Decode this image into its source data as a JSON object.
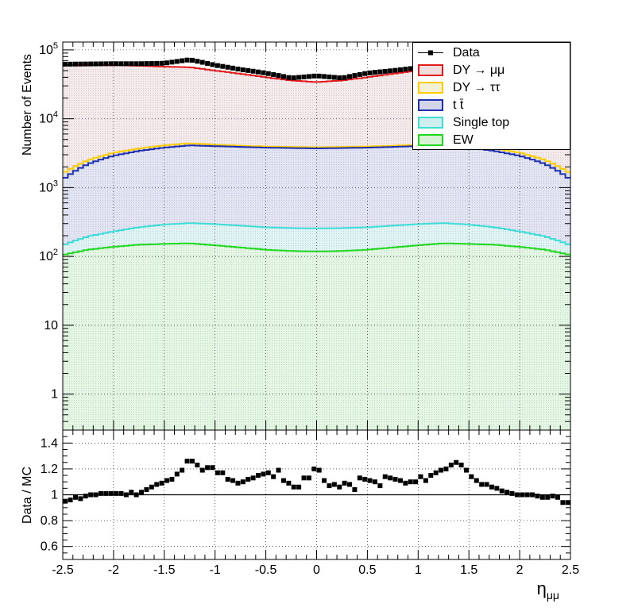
{
  "chart_data": [
    {
      "type": "area",
      "panel": "main",
      "ylabel": "Number of Events",
      "yscale": "log",
      "ylim": [
        0.3,
        130000
      ],
      "xlim": [
        -2.5,
        2.5
      ],
      "bins": 100,
      "yticks": [
        "1",
        "10",
        "10^2",
        "10^3",
        "10^4",
        "10^5"
      ],
      "grid": true,
      "legend_position": "top-right",
      "legend": [
        {
          "label": "Data",
          "symbol": "marker-line",
          "color": "#000000"
        },
        {
          "label": "DY → μμ",
          "symbol": "box",
          "color": "#e31a1c"
        },
        {
          "label": "DY → ττ",
          "symbol": "box",
          "color": "#ffcc00"
        },
        {
          "label": "t t̄",
          "symbol": "box",
          "color": "#1f2fb0"
        },
        {
          "label": "Single top",
          "symbol": "box",
          "color": "#3fdcd8"
        },
        {
          "label": "EW",
          "symbol": "box",
          "color": "#1fd81f"
        }
      ],
      "series": [
        {
          "name": "EW",
          "color": "#1fd81f",
          "fill": "#d6f2d2",
          "x": [
            -2.5,
            -2.25,
            -2.0,
            -1.75,
            -1.5,
            -1.25,
            -1.0,
            -0.75,
            -0.5,
            -0.25,
            0.0,
            0.25,
            0.5,
            0.75,
            1.0,
            1.25,
            1.5,
            1.75,
            2.0,
            2.25,
            2.5
          ],
          "values": [
            105,
            125,
            138,
            148,
            152,
            155,
            145,
            135,
            125,
            120,
            118,
            120,
            125,
            135,
            145,
            155,
            152,
            148,
            138,
            125,
            105
          ]
        },
        {
          "name": "Single top",
          "color": "#3fdcd8",
          "fill": "#cfeeee",
          "x": [
            -2.5,
            -2.25,
            -2.0,
            -1.75,
            -1.5,
            -1.25,
            -1.0,
            -0.75,
            -0.5,
            -0.25,
            0.0,
            0.25,
            0.5,
            0.75,
            1.0,
            1.25,
            1.5,
            1.75,
            2.0,
            2.25,
            2.5
          ],
          "values": [
            145,
            195,
            230,
            265,
            290,
            305,
            295,
            280,
            265,
            258,
            255,
            258,
            265,
            280,
            295,
            305,
            290,
            265,
            230,
            195,
            145
          ]
        },
        {
          "name": "t t̄",
          "color": "#1f2fb0",
          "fill": "#d3d6ea",
          "x": [
            -2.5,
            -2.25,
            -2.0,
            -1.75,
            -1.5,
            -1.25,
            -1.0,
            -0.75,
            -0.5,
            -0.25,
            0.0,
            0.25,
            0.5,
            0.75,
            1.0,
            1.25,
            1.5,
            1.75,
            2.0,
            2.25,
            2.5
          ],
          "values": [
            1300,
            2200,
            2900,
            3400,
            3800,
            4100,
            4000,
            3900,
            3800,
            3750,
            3700,
            3750,
            3800,
            3900,
            4000,
            4100,
            3800,
            3400,
            2900,
            2200,
            1300
          ]
        },
        {
          "name": "DY → ττ",
          "color": "#ffcc00",
          "fill": "#d3d6ea",
          "x": [
            -2.5,
            -2.25,
            -2.0,
            -1.75,
            -1.5,
            -1.25,
            -1.0,
            -0.75,
            -0.5,
            -0.25,
            0.0,
            0.25,
            0.5,
            0.75,
            1.0,
            1.25,
            1.5,
            1.75,
            2.0,
            2.25,
            2.5
          ],
          "values": [
            1600,
            2500,
            3200,
            3700,
            4100,
            4400,
            4200,
            4050,
            3950,
            3900,
            3850,
            3900,
            3950,
            4050,
            4200,
            4400,
            4100,
            3700,
            3200,
            2500,
            1600
          ]
        },
        {
          "name": "DY → μμ",
          "color": "#e31a1c",
          "fill": "#f0dede",
          "x": [
            -2.5,
            -2.25,
            -2.0,
            -1.75,
            -1.5,
            -1.25,
            -1.0,
            -0.75,
            -0.5,
            -0.25,
            0.0,
            0.25,
            0.5,
            0.75,
            1.0,
            1.25,
            1.5,
            1.75,
            2.0,
            2.25,
            2.5
          ],
          "values": [
            60000,
            60500,
            60000,
            59000,
            57000,
            56000,
            50000,
            45000,
            40000,
            36000,
            34000,
            36000,
            40000,
            45000,
            50000,
            56000,
            57000,
            59000,
            60000,
            60500,
            60000
          ]
        },
        {
          "name": "Data",
          "color": "#000000",
          "marker": "square",
          "x": [
            -2.5,
            -2.25,
            -2.0,
            -1.75,
            -1.5,
            -1.25,
            -1.0,
            -0.75,
            -0.5,
            -0.25,
            0.0,
            0.25,
            0.5,
            0.75,
            1.0,
            1.25,
            1.5,
            1.75,
            2.0,
            2.25,
            2.5
          ],
          "values": [
            62000,
            62500,
            63000,
            63000,
            64000,
            72000,
            60000,
            52000,
            46000,
            39000,
            42000,
            39000,
            46000,
            50000,
            55000,
            68000,
            62000,
            60000,
            60500,
            62000,
            62000
          ]
        }
      ]
    },
    {
      "type": "scatter",
      "panel": "ratio",
      "xlabel": "ημμ",
      "ylabel": "Data / MC",
      "xlim": [
        -2.5,
        2.5
      ],
      "ylim": [
        0.5,
        1.5
      ],
      "xticks": [
        "-2.5",
        "-2",
        "-1.5",
        "-1",
        "-0.5",
        "0",
        "0.5",
        "1",
        "1.5",
        "2",
        "2.5"
      ],
      "yticks": [
        "0.6",
        "0.8",
        "1",
        "1.2",
        "1.4"
      ],
      "reference_line": 1,
      "grid": true,
      "series": [
        {
          "color": "#000000",
          "marker": "square",
          "x": [
            -2.475,
            -2.425,
            -2.375,
            -2.325,
            -2.275,
            -2.225,
            -2.175,
            -2.125,
            -2.075,
            -2.025,
            -1.975,
            -1.925,
            -1.875,
            -1.825,
            -1.775,
            -1.725,
            -1.675,
            -1.625,
            -1.575,
            -1.525,
            -1.475,
            -1.425,
            -1.375,
            -1.325,
            -1.275,
            -1.225,
            -1.175,
            -1.125,
            -1.075,
            -1.025,
            -0.975,
            -0.925,
            -0.875,
            -0.825,
            -0.775,
            -0.725,
            -0.675,
            -0.625,
            -0.575,
            -0.525,
            -0.475,
            -0.425,
            -0.375,
            -0.325,
            -0.275,
            -0.225,
            -0.175,
            -0.125,
            -0.075,
            -0.025,
            0.025,
            0.075,
            0.125,
            0.175,
            0.225,
            0.275,
            0.325,
            0.375,
            0.425,
            0.475,
            0.525,
            0.575,
            0.625,
            0.675,
            0.725,
            0.775,
            0.825,
            0.875,
            0.925,
            0.975,
            1.025,
            1.075,
            1.125,
            1.175,
            1.225,
            1.275,
            1.325,
            1.375,
            1.425,
            1.475,
            1.525,
            1.575,
            1.625,
            1.675,
            1.725,
            1.775,
            1.825,
            1.875,
            1.925,
            1.975,
            2.025,
            2.075,
            2.125,
            2.175,
            2.225,
            2.275,
            2.325,
            2.375,
            2.425,
            2.475
          ],
          "values": [
            0.95,
            0.96,
            0.98,
            0.97,
            0.99,
            1.0,
            1.0,
            1.01,
            1.01,
            1.01,
            1.01,
            1.01,
            1.0,
            1.02,
            1.0,
            1.02,
            1.04,
            1.06,
            1.08,
            1.09,
            1.11,
            1.12,
            1.16,
            1.19,
            1.26,
            1.26,
            1.23,
            1.19,
            1.21,
            1.21,
            1.17,
            1.17,
            1.12,
            1.11,
            1.09,
            1.1,
            1.12,
            1.13,
            1.15,
            1.16,
            1.17,
            1.14,
            1.19,
            1.11,
            1.09,
            1.06,
            1.06,
            1.13,
            1.13,
            1.2,
            1.19,
            1.11,
            1.07,
            1.08,
            1.06,
            1.09,
            1.08,
            1.04,
            1.13,
            1.12,
            1.11,
            1.1,
            1.07,
            1.14,
            1.13,
            1.12,
            1.11,
            1.09,
            1.1,
            1.1,
            1.14,
            1.11,
            1.15,
            1.17,
            1.19,
            1.2,
            1.23,
            1.25,
            1.23,
            1.19,
            1.14,
            1.11,
            1.08,
            1.08,
            1.06,
            1.05,
            1.03,
            1.02,
            1.01,
            1.0,
            1.0,
            1.0,
            1.0,
            0.99,
            0.98,
            0.98,
            0.99,
            0.98,
            0.94,
            0.94
          ]
        }
      ]
    }
  ]
}
